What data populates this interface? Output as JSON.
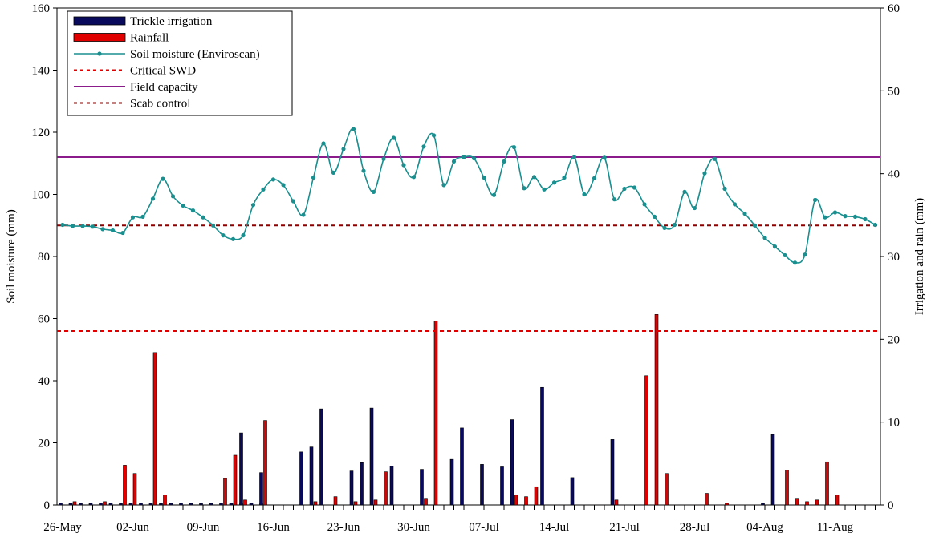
{
  "chart_data": {
    "type": "bar+line",
    "x_ticks": [
      "26-May",
      "02-Jun",
      "09-Jun",
      "16-Jun",
      "23-Jun",
      "30-Jun",
      "07-Jul",
      "14-Jul",
      "21-Jul",
      "28-Jul",
      "04-Aug",
      "11-Aug"
    ],
    "y_left": {
      "label": "Soil moisture (mm)",
      "lim": [
        0,
        160
      ],
      "ticks": [
        0,
        20,
        40,
        60,
        80,
        100,
        120,
        140,
        160
      ]
    },
    "y_right": {
      "label": "Irrigation and rain (mm)",
      "lim": [
        0,
        60
      ],
      "ticks": [
        0,
        10,
        20,
        30,
        40,
        50,
        60
      ]
    },
    "colors": {
      "irrigation": "#0a0a5c",
      "rainfall": "#e00000",
      "soil_moisture": "#1a8f8f",
      "critical_swd": "#e00000",
      "field_capacity": "#8b1a8b",
      "scab_control": "#8b0000"
    },
    "legend": {
      "position": "top-left",
      "items": [
        {
          "key": "irrigation",
          "label": "Trickle irrigation",
          "kind": "bar"
        },
        {
          "key": "rainfall",
          "label": "Rainfall",
          "kind": "bar"
        },
        {
          "key": "soil_moisture",
          "label": "Soil moisture (Enviroscan)",
          "kind": "line-marker"
        },
        {
          "key": "critical_swd",
          "label": "Critical SWD",
          "kind": "dashed"
        },
        {
          "key": "field_capacity",
          "label": "Field capacity",
          "kind": "solid"
        },
        {
          "key": "scab_control",
          "label": "Scab control",
          "kind": "dashed"
        }
      ]
    },
    "reference_lines": [
      {
        "key": "critical_swd",
        "value": 56,
        "axis": "left"
      },
      {
        "key": "field_capacity",
        "value": 112,
        "axis": "left"
      },
      {
        "key": "scab_control",
        "value": 90,
        "axis": "left"
      }
    ],
    "irrigation": [
      {
        "day": 0,
        "value": 0.2
      },
      {
        "day": 1,
        "value": 0.2
      },
      {
        "day": 2,
        "value": 0.2
      },
      {
        "day": 3,
        "value": 0.2
      },
      {
        "day": 4,
        "value": 0.2
      },
      {
        "day": 5,
        "value": 0.2
      },
      {
        "day": 6,
        "value": 0.2
      },
      {
        "day": 7,
        "value": 0.2
      },
      {
        "day": 8,
        "value": 0.2
      },
      {
        "day": 9,
        "value": 0.2
      },
      {
        "day": 10,
        "value": 0.2
      },
      {
        "day": 11,
        "value": 0.2
      },
      {
        "day": 12,
        "value": 0.2
      },
      {
        "day": 13,
        "value": 0.2
      },
      {
        "day": 14,
        "value": 0.2
      },
      {
        "day": 15,
        "value": 0.2
      },
      {
        "day": 16,
        "value": 0.2
      },
      {
        "day": 17,
        "value": 0.2
      },
      {
        "day": 18,
        "value": 0.2
      },
      {
        "day": 19,
        "value": 0.2
      },
      {
        "day": 20,
        "value": 0.2
      },
      {
        "day": 18,
        "value": 8.7
      },
      {
        "day": 20,
        "value": 3.9
      },
      {
        "day": 24,
        "value": 6.4
      },
      {
        "day": 25,
        "value": 7.0
      },
      {
        "day": 26,
        "value": 11.6
      },
      {
        "day": 29,
        "value": 4.1
      },
      {
        "day": 30,
        "value": 5.1
      },
      {
        "day": 31,
        "value": 11.7
      },
      {
        "day": 33,
        "value": 4.7
      },
      {
        "day": 36,
        "value": 4.3
      },
      {
        "day": 39,
        "value": 5.5
      },
      {
        "day": 40,
        "value": 9.3
      },
      {
        "day": 42,
        "value": 4.9
      },
      {
        "day": 44,
        "value": 4.6
      },
      {
        "day": 45,
        "value": 10.3
      },
      {
        "day": 48,
        "value": 14.2
      },
      {
        "day": 51,
        "value": 3.3
      },
      {
        "day": 55,
        "value": 7.9
      },
      {
        "day": 70,
        "value": 0.2
      },
      {
        "day": 71,
        "value": 8.5
      }
    ],
    "rainfall": [
      {
        "day": 1,
        "value": 0.4
      },
      {
        "day": 4,
        "value": 0.4
      },
      {
        "day": 6,
        "value": 4.8
      },
      {
        "day": 7,
        "value": 3.8
      },
      {
        "day": 9,
        "value": 18.4
      },
      {
        "day": 10,
        "value": 1.2
      },
      {
        "day": 16,
        "value": 3.2
      },
      {
        "day": 17,
        "value": 6.0
      },
      {
        "day": 18,
        "value": 0.6
      },
      {
        "day": 20,
        "value": 10.2
      },
      {
        "day": 25,
        "value": 0.4
      },
      {
        "day": 27,
        "value": 1.0
      },
      {
        "day": 29,
        "value": 0.4
      },
      {
        "day": 31,
        "value": 0.6
      },
      {
        "day": 32,
        "value": 4.0
      },
      {
        "day": 36,
        "value": 0.8
      },
      {
        "day": 37,
        "value": 22.2
      },
      {
        "day": 45,
        "value": 1.2
      },
      {
        "day": 46,
        "value": 1.0
      },
      {
        "day": 47,
        "value": 2.2
      },
      {
        "day": 55,
        "value": 0.6
      },
      {
        "day": 58,
        "value": 15.6
      },
      {
        "day": 59,
        "value": 23.0
      },
      {
        "day": 60,
        "value": 3.8
      },
      {
        "day": 64,
        "value": 1.4
      },
      {
        "day": 66,
        "value": 0.2
      },
      {
        "day": 72,
        "value": 4.2
      },
      {
        "day": 73,
        "value": 0.8
      },
      {
        "day": 74,
        "value": 0.4
      },
      {
        "day": 75,
        "value": 0.6
      },
      {
        "day": 76,
        "value": 5.2
      },
      {
        "day": 77,
        "value": 1.2
      }
    ],
    "soil_moisture": [
      [
        0,
        90.2
      ],
      [
        1,
        89.8
      ],
      [
        2,
        89.8
      ],
      [
        3,
        89.6
      ],
      [
        4,
        88.8
      ],
      [
        5,
        88.4
      ],
      [
        6,
        87.6
      ],
      [
        7,
        92.6
      ],
      [
        8,
        92.8
      ],
      [
        9,
        98.6
      ],
      [
        10,
        105.0
      ],
      [
        11,
        99.4
      ],
      [
        12,
        96.4
      ],
      [
        13,
        94.8
      ],
      [
        14,
        92.6
      ],
      [
        15,
        90.0
      ],
      [
        16,
        86.8
      ],
      [
        17,
        85.6
      ],
      [
        18,
        86.8
      ],
      [
        19,
        96.6
      ],
      [
        20,
        101.6
      ],
      [
        21,
        104.8
      ],
      [
        22,
        103.0
      ],
      [
        23,
        97.8
      ],
      [
        24,
        93.4
      ],
      [
        25,
        105.4
      ],
      [
        26,
        116.4
      ],
      [
        27,
        107.0
      ],
      [
        28,
        114.6
      ],
      [
        29,
        121.0
      ],
      [
        30,
        107.6
      ],
      [
        31,
        100.8
      ],
      [
        32,
        111.4
      ],
      [
        33,
        118.2
      ],
      [
        34,
        109.4
      ],
      [
        35,
        105.6
      ],
      [
        36,
        115.4
      ],
      [
        37,
        119.0
      ],
      [
        38,
        103.0
      ],
      [
        39,
        110.6
      ],
      [
        40,
        112.0
      ],
      [
        41,
        111.6
      ],
      [
        42,
        105.4
      ],
      [
        43,
        99.8
      ],
      [
        44,
        110.6
      ],
      [
        45,
        115.2
      ],
      [
        46,
        102.0
      ],
      [
        47,
        105.6
      ],
      [
        48,
        101.6
      ],
      [
        49,
        103.8
      ],
      [
        50,
        105.4
      ],
      [
        51,
        112.0
      ],
      [
        52,
        100.0
      ],
      [
        53,
        105.2
      ],
      [
        54,
        111.8
      ],
      [
        55,
        98.4
      ],
      [
        56,
        101.8
      ],
      [
        57,
        102.2
      ],
      [
        58,
        96.8
      ],
      [
        59,
        92.8
      ],
      [
        60,
        89.2
      ],
      [
        61,
        90.2
      ],
      [
        62,
        100.8
      ],
      [
        63,
        95.6
      ],
      [
        64,
        106.8
      ],
      [
        65,
        111.4
      ],
      [
        66,
        101.8
      ],
      [
        67,
        96.8
      ],
      [
        68,
        93.8
      ],
      [
        69,
        90.0
      ],
      [
        70,
        86.0
      ],
      [
        71,
        83.2
      ],
      [
        72,
        80.4
      ],
      [
        73,
        78.0
      ],
      [
        74,
        80.6
      ],
      [
        75,
        98.2
      ],
      [
        76,
        92.6
      ],
      [
        77,
        94.2
      ],
      [
        78,
        93.0
      ],
      [
        79,
        92.8
      ],
      [
        80,
        92.0
      ],
      [
        81,
        90.2
      ]
    ]
  }
}
